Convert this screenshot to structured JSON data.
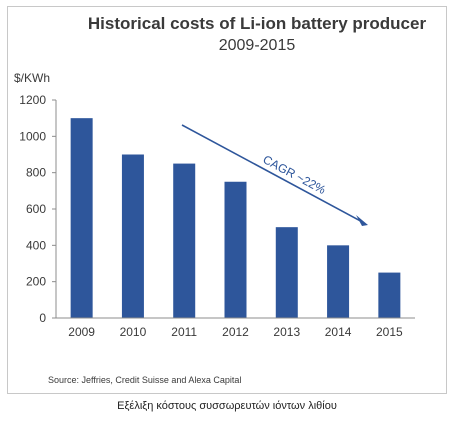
{
  "chart_data": {
    "type": "bar",
    "title": "Historical costs of Li-ion battery producer",
    "subtitle": "2009-2015",
    "ylabel": "$/KWh",
    "xlabel": "",
    "categories": [
      "2009",
      "2010",
      "2011",
      "2012",
      "2013",
      "2014",
      "2015"
    ],
    "values": [
      1100,
      900,
      850,
      750,
      500,
      400,
      250
    ],
    "ylim": [
      0,
      1200
    ],
    "yticks": [
      0,
      200,
      400,
      600,
      800,
      1000,
      1200
    ],
    "grid": false,
    "legend": "none",
    "bar_color": "#2e569b",
    "annotation": {
      "text": "CAGR ~22%",
      "type": "arrow",
      "color": "#2e569b"
    }
  },
  "source": "Source: Jeffries, Credit Suisse and Alexa Capital",
  "caption": "Εξέλιξη κόστους συσσωρευτών ιόντων λιθίου"
}
